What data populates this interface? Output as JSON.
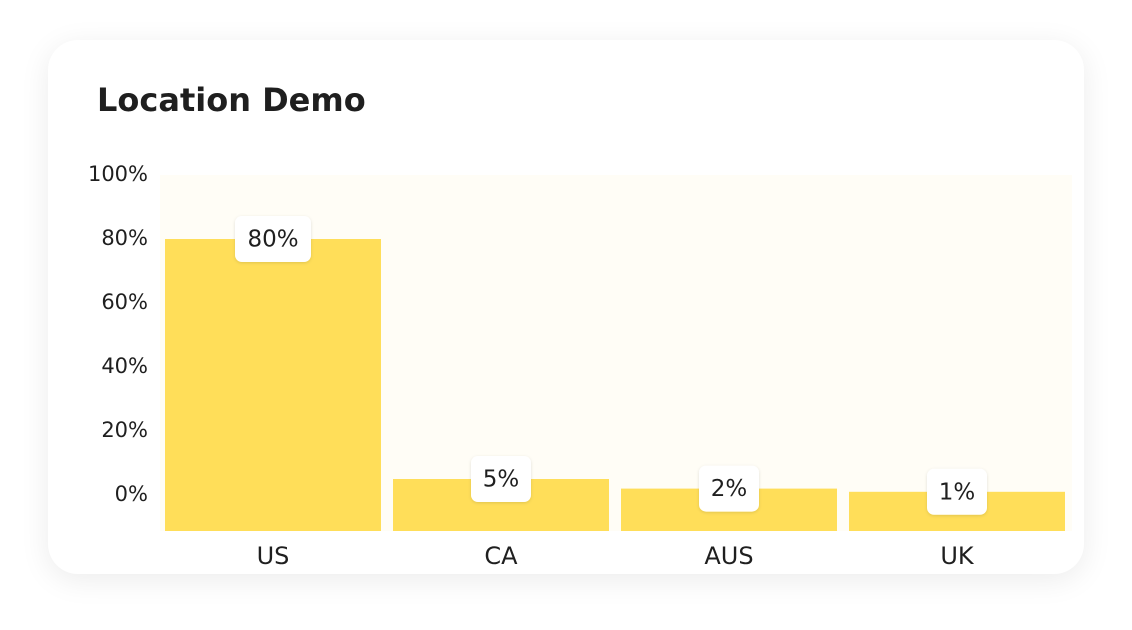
{
  "chart_data": {
    "type": "bar",
    "title": "Location Demo",
    "categories": [
      "US",
      "CA",
      "AUS",
      "UK"
    ],
    "values": [
      80,
      5,
      2,
      1
    ],
    "value_labels": [
      "80%",
      "5%",
      "2%",
      "1%"
    ],
    "color": "#ffde59",
    "ylim": [
      -11.25,
      100
    ],
    "yticks": [
      {
        "value": 0,
        "label": "0%"
      },
      {
        "value": 20,
        "label": "20%"
      },
      {
        "value": 40,
        "label": "40%"
      },
      {
        "value": 60,
        "label": "60%"
      },
      {
        "value": 80,
        "label": "80%"
      },
      {
        "value": 100,
        "label": "100%"
      }
    ]
  }
}
